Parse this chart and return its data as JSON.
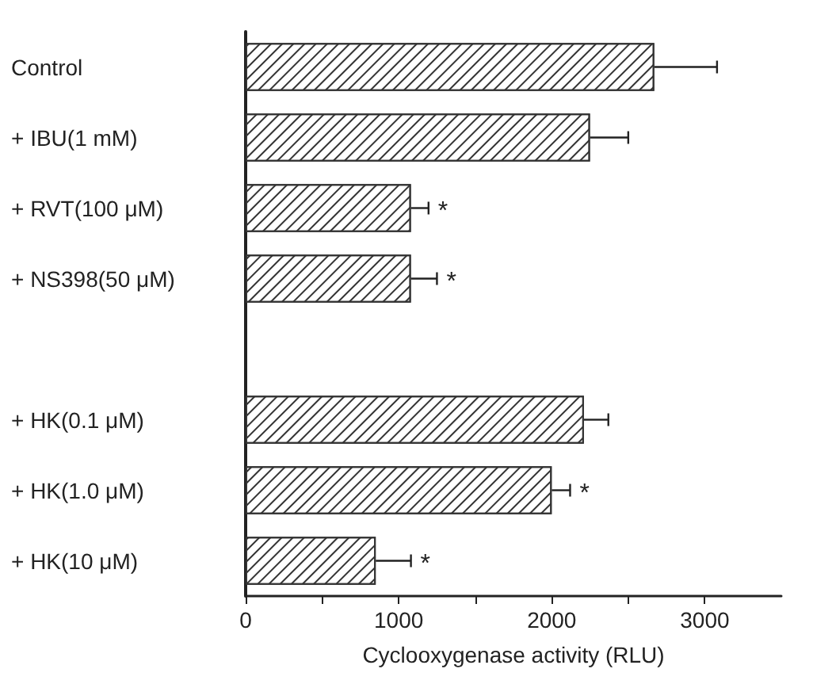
{
  "chart_data": {
    "type": "bar",
    "orientation": "horizontal",
    "xlabel": "Cyclooxygenase activity (RLU)",
    "categories": [
      "Control",
      "+ IBU(1 mM)",
      "+ RVT(100 μM)",
      "+ NS398(50 μM)",
      null,
      "+ HK(0.1 μM)",
      "+ HK(1.0 μM)",
      "+ HK(10 μM)"
    ],
    "values": [
      2670,
      2250,
      1080,
      1080,
      null,
      2210,
      2000,
      850
    ],
    "errors": [
      [
        2670,
        3080
      ],
      [
        2250,
        2500
      ],
      [
        1080,
        1195
      ],
      [
        1080,
        1250
      ],
      null,
      [
        2210,
        2370
      ],
      [
        2000,
        2120
      ],
      [
        850,
        1080
      ]
    ],
    "value_labels": [
      null,
      null,
      "*",
      "*",
      null,
      null,
      "*",
      "*"
    ],
    "color": "#ffffff",
    "xlim": [
      0,
      3500
    ],
    "xticks": [
      0,
      {
        "value": 500,
        "label": null
      },
      1000,
      {
        "value": 1500,
        "label": null
      },
      2000,
      {
        "value": 2500,
        "label": null
      },
      3000
    ],
    "grid": false
  }
}
